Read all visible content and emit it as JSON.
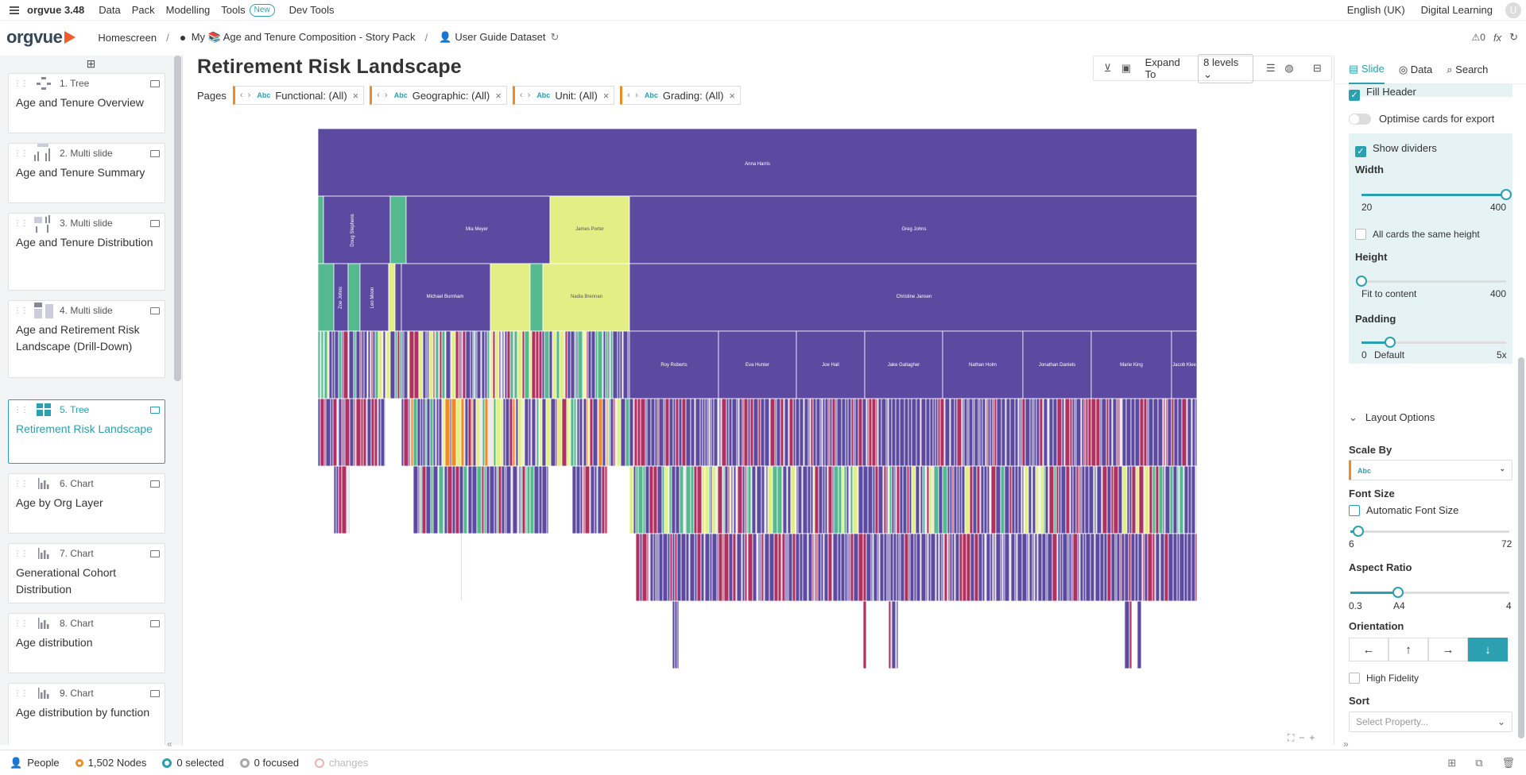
{
  "topbar": {
    "app": "orgvue 3.48",
    "menus": [
      "Data",
      "Pack",
      "Modelling",
      "Tools",
      "Dev Tools"
    ],
    "new_badge": "New",
    "language": "English (UK)",
    "learning": "Digital Learning",
    "avatar": "U"
  },
  "breadcrumb": {
    "logo": "orgvue",
    "home": "Homescreen",
    "pack": "My 📚 Age and Tenure Composition - Story Pack",
    "dataset": "User Guide Dataset",
    "counter": "0"
  },
  "sidebar": {
    "slides": [
      {
        "num": "1. Tree",
        "title": "Age and Tenure Overview"
      },
      {
        "num": "2. Multi slide",
        "title": "Age and Tenure Summary"
      },
      {
        "num": "3. Multi slide",
        "title": "Age and Tenure Distribution"
      },
      {
        "num": "4. Multi slide",
        "title": "Age and Retirement Risk Landscape (Drill-Down)"
      },
      {
        "num": "5. Tree",
        "title": "Retirement Risk Landscape"
      },
      {
        "num": "6. Chart",
        "title": "Age by Org Layer"
      },
      {
        "num": "7. Chart",
        "title": "Generational Cohort Distribution"
      },
      {
        "num": "8. Chart",
        "title": "Age distribution"
      },
      {
        "num": "9. Chart",
        "title": "Age distribution by function"
      }
    ]
  },
  "page": {
    "title": "Retirement Risk Landscape",
    "expand_label": "Expand To",
    "levels": "8 levels",
    "pages_label": "Pages",
    "filters": [
      {
        "abc": "Abc",
        "label": "Functional: (All)"
      },
      {
        "abc": "Abc",
        "label": "Geographic: (All)"
      },
      {
        "abc": "Abc",
        "label": "Unit: (All)"
      },
      {
        "abc": "Abc",
        "label": "Grading: (All)"
      }
    ]
  },
  "tree": {
    "root": "Anna Harris",
    "level1": [
      "Doug Stephens",
      "Mia Meyer",
      "James Porter",
      "Greg Johns"
    ],
    "level2": [
      "Zoe Johns",
      "Leo Moon",
      "Michael Burnham",
      "Nadia Brennan",
      "Christine Jansen"
    ],
    "level3": [
      "Roy Roberts",
      "Eva Hunter",
      "Joe Hall",
      "Jake Gallagher",
      "Nathan Holm",
      "Jonathan Daniels",
      "Marie King",
      "Jacob Klee"
    ]
  },
  "rpanel": {
    "tabs": [
      "Slide",
      "Data",
      "Search"
    ],
    "fill_header": "Fill Header",
    "optimise": "Optimise cards for export",
    "show_dividers": "Show dividers",
    "width_label": "Width",
    "width_min": "20",
    "width_max": "400",
    "same_height": "All cards the same height",
    "height_label": "Height",
    "height_min": "Fit to content",
    "height_max": "400",
    "padding_label": "Padding",
    "padding_min": "0",
    "padding_default": "Default",
    "padding_max": "5x",
    "layout_options": "Layout Options",
    "scale_by": "Scale By",
    "scale_value": "Abc",
    "font_size": "Font Size",
    "auto_font": "Automatic Font Size",
    "font_min": "6",
    "font_max": "72",
    "aspect_ratio": "Aspect Ratio",
    "ar_min": "0.3",
    "ar_mid": "A4",
    "ar_max": "4",
    "orientation": "Orientation",
    "high_fidelity": "High Fidelity",
    "sort": "Sort",
    "sort_placeholder": "Select Property...",
    "sliders": {
      "width": 1.0,
      "height": 0.0,
      "padding": 0.2,
      "font": 0.05,
      "aspect": 0.3
    }
  },
  "status": {
    "people": "People",
    "nodes": "1,502 Nodes",
    "selected": "0 selected",
    "focused": "0 focused",
    "changes": "changes"
  },
  "colors": {
    "accent": "#2aa0b0",
    "node": "#5b4a9f",
    "warm": "#e3ef85",
    "teal": "#55b98f",
    "red": "#b03060",
    "orange": "#f08a24"
  }
}
